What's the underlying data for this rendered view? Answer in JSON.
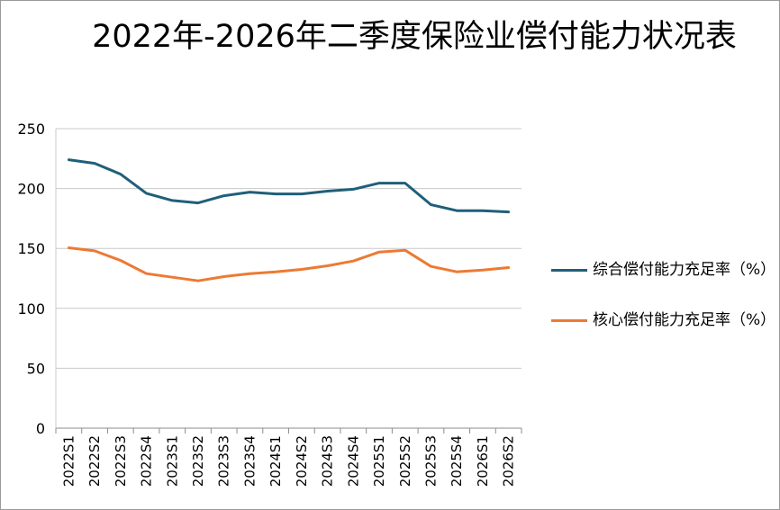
{
  "chart_data": {
    "type": "line",
    "title": "2022年-2026年二季度保险业偿付能力状况表",
    "categories": [
      "2022S1",
      "2022S2",
      "2022S3",
      "2022S4",
      "2023S1",
      "2023S2",
      "2023S3",
      "2023S4",
      "2024S1",
      "2024S2",
      "2024S3",
      "2024S4",
      "2025S1",
      "2025S2",
      "2025S3",
      "2025S4",
      "2026S1",
      "2026S2"
    ],
    "series": [
      {
        "name": "综合偿付能力充足率（%）",
        "color": "#1f5f7a",
        "values": [
          224,
          221,
          212,
          196,
          190,
          188,
          194,
          197,
          195.5,
          195.5,
          197.8,
          199.4,
          204.5,
          204.5,
          186.5,
          181.5,
          181.5,
          180.5
        ]
      },
      {
        "name": "核心偿付能力充足率（%）",
        "color": "#ec7a33",
        "values": [
          150.5,
          148,
          140,
          129,
          126,
          123,
          126.5,
          129,
          130.5,
          132.5,
          135.5,
          139.5,
          147,
          148.5,
          135,
          130.5,
          132,
          134
        ]
      }
    ],
    "ylim": [
      0,
      250
    ],
    "yticks": [
      0,
      50,
      100,
      150,
      200,
      250
    ],
    "grid": true,
    "legend_position": "right"
  }
}
